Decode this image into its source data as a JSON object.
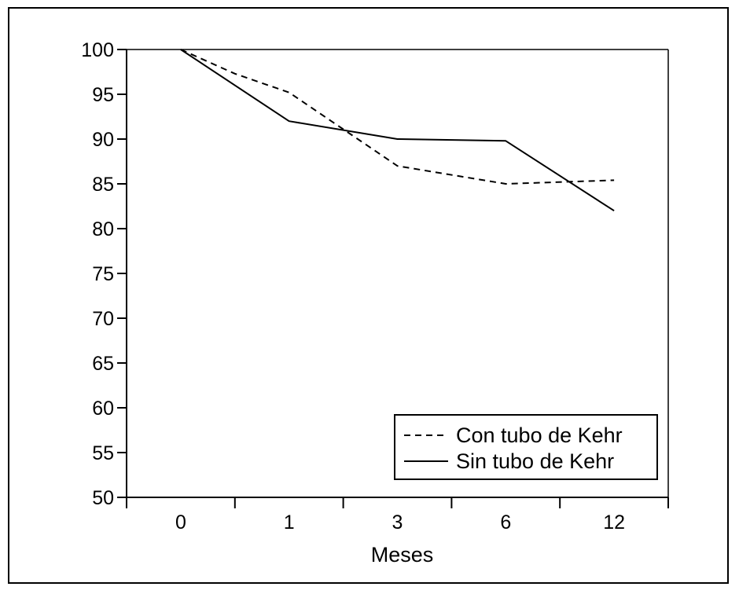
{
  "chart_data": {
    "type": "line",
    "categories": [
      "0",
      "1",
      "3",
      "6",
      "12"
    ],
    "xlabel": "Meses",
    "ylabel": "",
    "ylim": [
      50,
      100
    ],
    "yticks": [
      50,
      55,
      60,
      65,
      70,
      75,
      80,
      85,
      90,
      95,
      100
    ],
    "grid": false,
    "legend_position": "bottom-right",
    "series": [
      {
        "name": "Con tubo de Kehr",
        "style": "dashed",
        "color": "#000000",
        "x": [
          0,
          0.5,
          1,
          2,
          3,
          4
        ],
        "values": [
          100,
          97.3,
          95.2,
          87,
          85,
          85.4
        ]
      },
      {
        "name": "Sin tubo de Kehr",
        "style": "solid",
        "color": "#000000",
        "x": [
          0,
          1,
          2,
          3,
          4
        ],
        "values": [
          100,
          92,
          90,
          89.8,
          82
        ]
      }
    ]
  }
}
